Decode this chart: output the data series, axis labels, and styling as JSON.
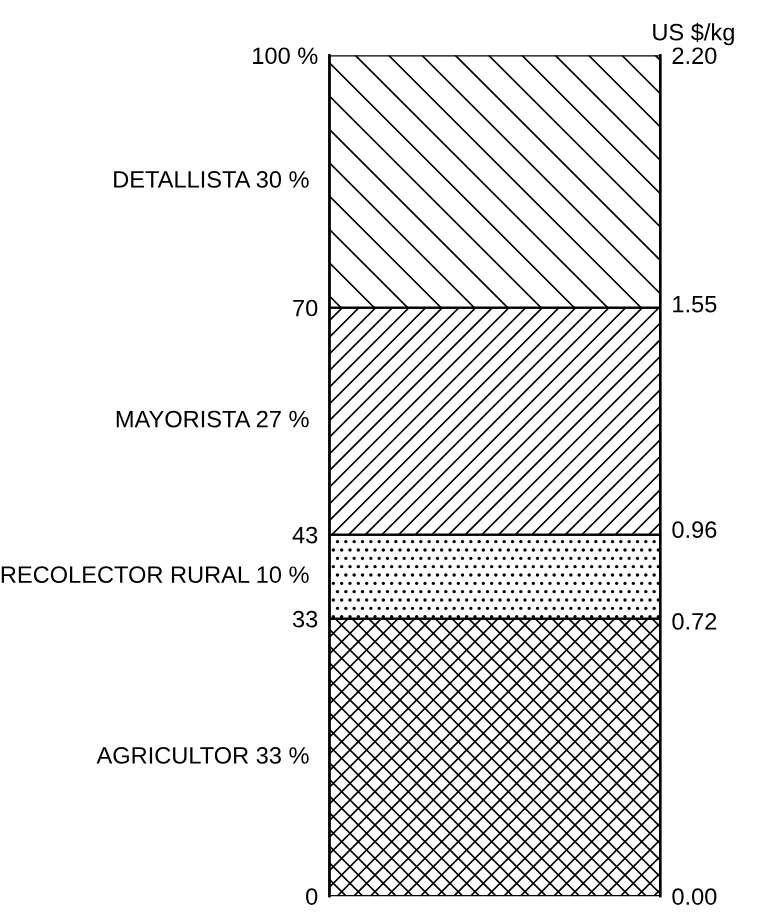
{
  "chart_data": {
    "type": "bar",
    "stacked": true,
    "categories": [
      null
    ],
    "series": [
      {
        "name": "AGRICULTOR 33 %",
        "color": "#000000",
        "values": [
          33
        ]
      },
      {
        "name": "RECOLECTOR RURAL 10 %",
        "color": "#000000",
        "values": [
          10
        ]
      },
      {
        "name": "MAYORISTA 27 %",
        "color": "#000000",
        "values": [
          27
        ]
      },
      {
        "name": "DETALLISTA 30 %",
        "color": "#000000",
        "values": [
          30
        ]
      }
    ],
    "ylim": [
      0,
      100
    ],
    "yticks": [
      0,
      33,
      43,
      70,
      {
        "value": 100,
        "label": "100 %"
      }
    ],
    "y2label": "US $/kg",
    "y2lim": [
      0,
      2.2
    ],
    "y2ticks": [
      {
        "value": 0,
        "label": "0.00"
      },
      {
        "value": 0.72,
        "label": "0.72"
      },
      {
        "value": 0.96,
        "label": "0.96"
      },
      {
        "value": 1.55,
        "label": "1.55"
      },
      {
        "value": 2.2,
        "label": "2.20"
      }
    ],
    "grid": false,
    "legend": false
  }
}
